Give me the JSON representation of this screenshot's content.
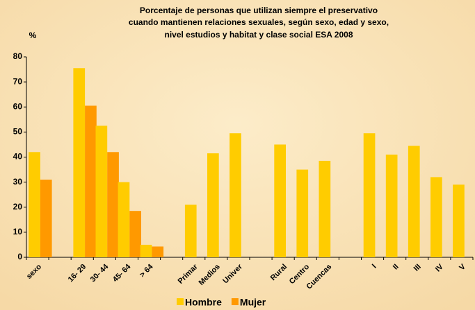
{
  "chart_data": {
    "type": "bar",
    "title": [
      "Porcentaje de personas que utilizan siempre el preservativo",
      "cuando mantienen relaciones sexuales, según sexo, edad y sexo,",
      "nivel estudios y habitat y clase social ESA 2008"
    ],
    "ylabel": "%",
    "categories": [
      "sexo",
      null,
      "16- 29",
      "30- 44",
      "45- 64",
      "> 64",
      null,
      "Primar",
      "Medios",
      "Univer",
      null,
      "Rural",
      "Centro",
      "Cuencas",
      null,
      "I",
      "II",
      "III",
      "IV",
      "V"
    ],
    "series": [
      {
        "name": "Hombre",
        "color": "#ffcc00",
        "values": [
          42,
          null,
          75.5,
          52.5,
          30,
          5,
          null,
          21,
          41.5,
          49.5,
          null,
          45,
          35,
          38.5,
          null,
          49.5,
          41,
          44.5,
          32,
          29
        ]
      },
      {
        "name": "Mujer",
        "color": "#ff9900",
        "values": [
          31,
          null,
          60.5,
          42,
          18.5,
          4.3,
          null,
          null,
          null,
          null,
          null,
          null,
          null,
          null,
          null,
          null,
          null,
          null,
          null,
          null
        ]
      }
    ],
    "ylim": [
      0,
      80
    ],
    "yticks": [
      0,
      10,
      20,
      30,
      40,
      50,
      60,
      70,
      80
    ],
    "grid": false,
    "legend": "bottom"
  }
}
